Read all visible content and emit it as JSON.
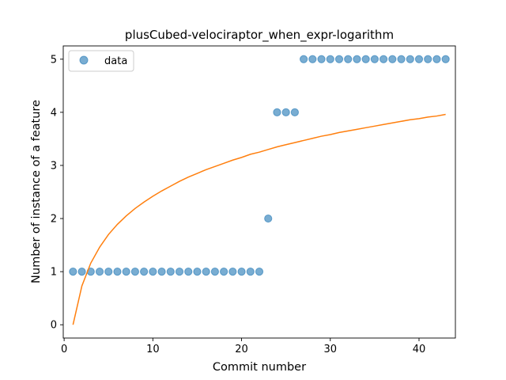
{
  "chart_data": {
    "type": "scatter",
    "title": "plusCubed-velociraptor_when_expr-logarithm",
    "xlabel": "Commit number",
    "ylabel": "Number of instance of a feature",
    "xlim": [
      -0.1,
      44.1
    ],
    "ylim": [
      -0.25,
      5.25
    ],
    "xticks": [
      0,
      10,
      20,
      30,
      40
    ],
    "yticks": [
      0,
      1,
      2,
      3,
      4,
      5
    ],
    "legend_position": "top-left",
    "grid": false,
    "series": [
      {
        "name": "data",
        "kind": "scatter",
        "color": "#1f77b4",
        "points": [
          [
            1,
            1
          ],
          [
            2,
            1
          ],
          [
            3,
            1
          ],
          [
            4,
            1
          ],
          [
            5,
            1
          ],
          [
            6,
            1
          ],
          [
            7,
            1
          ],
          [
            8,
            1
          ],
          [
            9,
            1
          ],
          [
            10,
            1
          ],
          [
            11,
            1
          ],
          [
            12,
            1
          ],
          [
            13,
            1
          ],
          [
            14,
            1
          ],
          [
            15,
            1
          ],
          [
            16,
            1
          ],
          [
            17,
            1
          ],
          [
            18,
            1
          ],
          [
            19,
            1
          ],
          [
            20,
            1
          ],
          [
            21,
            1
          ],
          [
            22,
            1
          ],
          [
            23,
            2
          ],
          [
            24,
            4
          ],
          [
            25,
            4
          ],
          [
            26,
            4
          ],
          [
            27,
            5
          ],
          [
            28,
            5
          ],
          [
            29,
            5
          ],
          [
            30,
            5
          ],
          [
            31,
            5
          ],
          [
            32,
            5
          ],
          [
            33,
            5
          ],
          [
            34,
            5
          ],
          [
            35,
            5
          ],
          [
            36,
            5
          ],
          [
            37,
            5
          ],
          [
            38,
            5
          ],
          [
            39,
            5
          ],
          [
            40,
            5
          ],
          [
            41,
            5
          ],
          [
            42,
            5
          ],
          [
            43,
            5
          ]
        ]
      },
      {
        "kind": "line",
        "color": "#ff7f0e",
        "points": [
          [
            1,
            0.0
          ],
          [
            2,
            0.73
          ],
          [
            3,
            1.16
          ],
          [
            4,
            1.46
          ],
          [
            5,
            1.7
          ],
          [
            6,
            1.89
          ],
          [
            7,
            2.05
          ],
          [
            8,
            2.19
          ],
          [
            9,
            2.31
          ],
          [
            10,
            2.42
          ],
          [
            11,
            2.52
          ],
          [
            12,
            2.61
          ],
          [
            13,
            2.7
          ],
          [
            14,
            2.78
          ],
          [
            15,
            2.85
          ],
          [
            16,
            2.92
          ],
          [
            17,
            2.98
          ],
          [
            18,
            3.04
          ],
          [
            19,
            3.1
          ],
          [
            20,
            3.15
          ],
          [
            21,
            3.21
          ],
          [
            22,
            3.25
          ],
          [
            23,
            3.3
          ],
          [
            24,
            3.35
          ],
          [
            25,
            3.39
          ],
          [
            26,
            3.43
          ],
          [
            27,
            3.47
          ],
          [
            28,
            3.51
          ],
          [
            29,
            3.55
          ],
          [
            30,
            3.58
          ],
          [
            31,
            3.62
          ],
          [
            32,
            3.65
          ],
          [
            33,
            3.68
          ],
          [
            34,
            3.71
          ],
          [
            35,
            3.74
          ],
          [
            36,
            3.77
          ],
          [
            37,
            3.8
          ],
          [
            38,
            3.83
          ],
          [
            39,
            3.86
          ],
          [
            40,
            3.88
          ],
          [
            41,
            3.91
          ],
          [
            42,
            3.93
          ],
          [
            43,
            3.96
          ]
        ]
      }
    ]
  }
}
